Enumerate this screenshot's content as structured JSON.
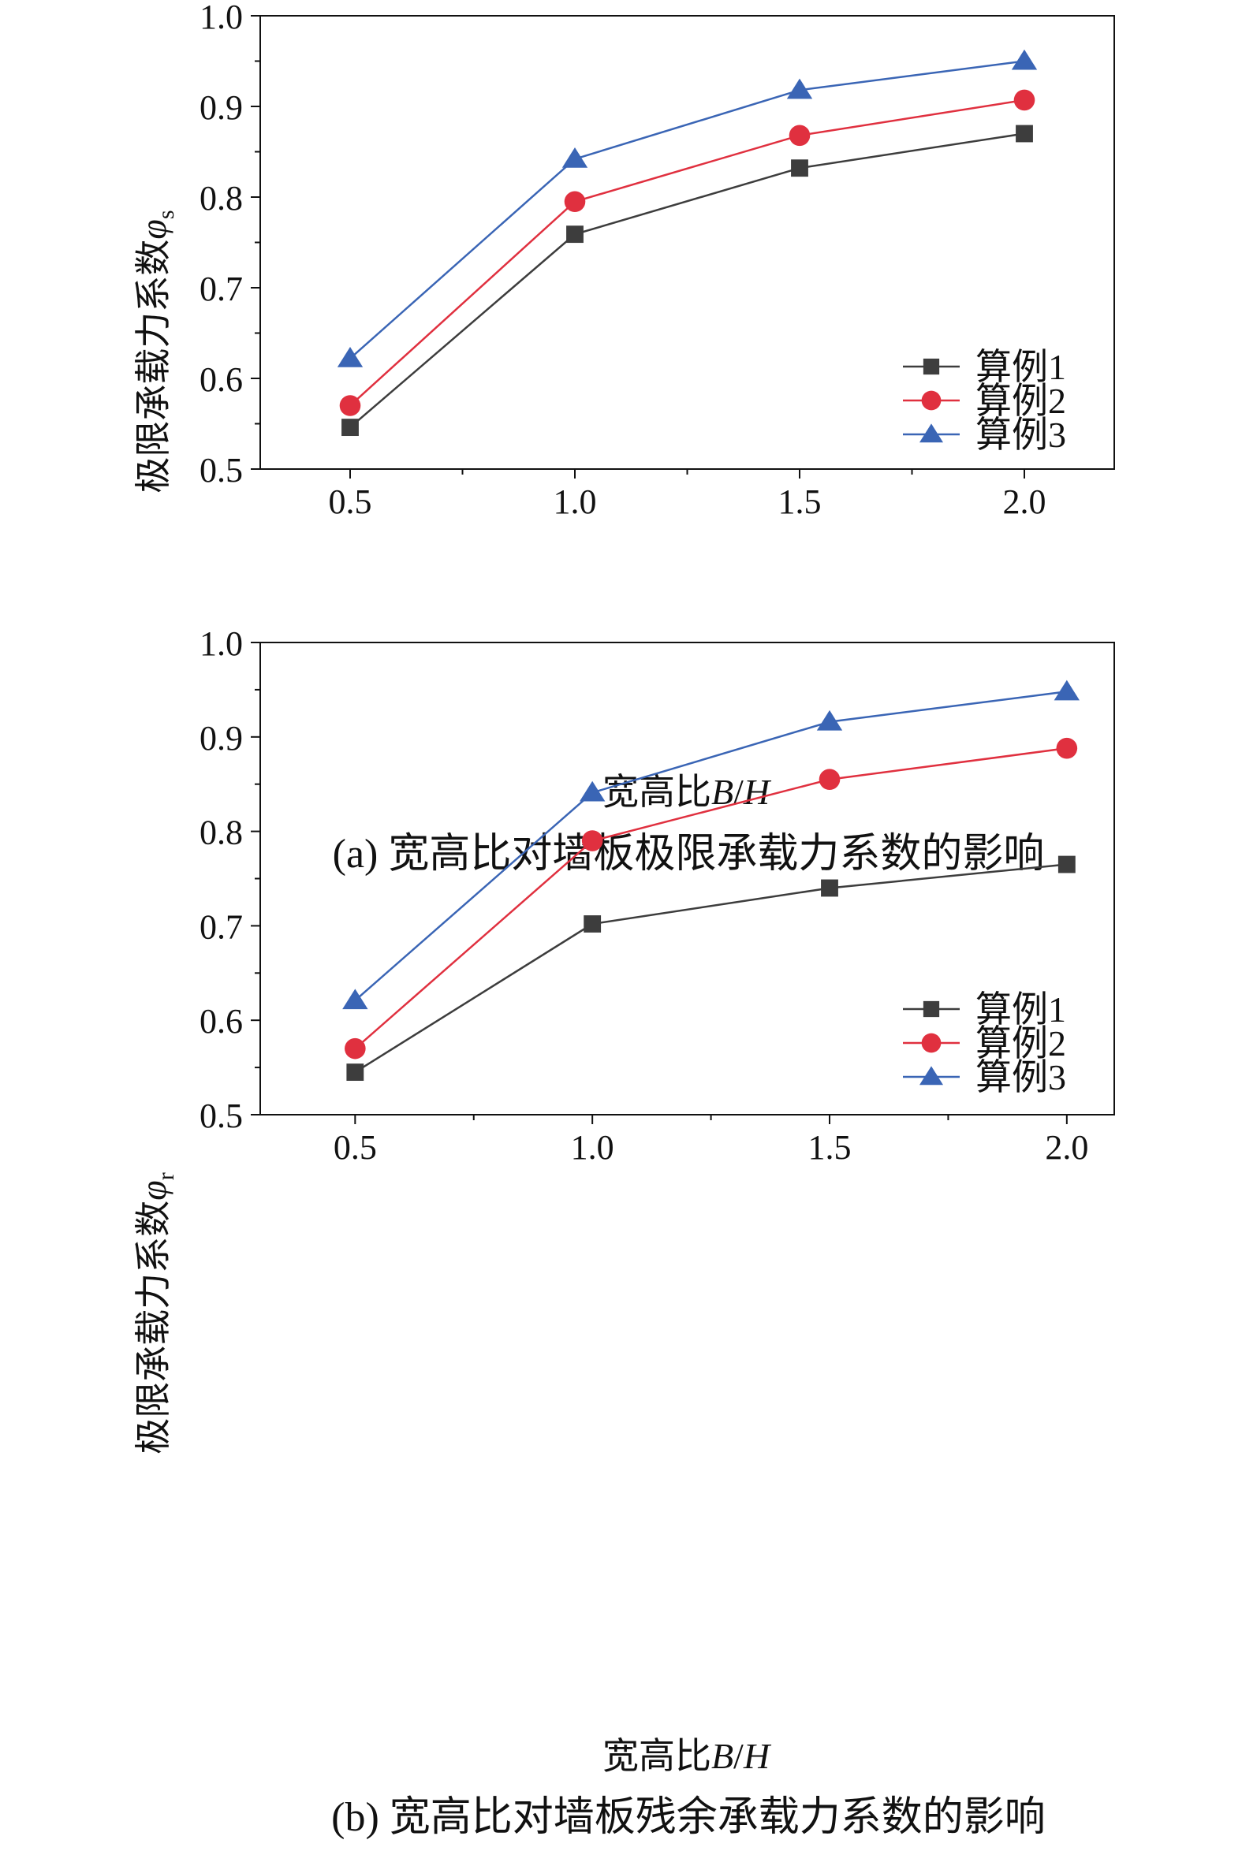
{
  "chart_data": [
    {
      "type": "line",
      "caption": "(a) 宽高比对墙板极限承载力系数的影响",
      "xlabel_prefix": "宽高比",
      "xlabel_var1": "B",
      "xlabel_slash": "/",
      "xlabel_var2": "H",
      "ylabel_prefix": "极限承载力系数",
      "ylabel_symbol": "φ",
      "ylabel_sub": "s",
      "x": [
        0.5,
        1.0,
        1.5,
        2.0
      ],
      "x_ticks": [
        "0.5",
        "1.0",
        "1.5",
        "2.0"
      ],
      "xlim": [
        0.3,
        2.2
      ],
      "ylim": [
        0.5,
        1.0
      ],
      "y_ticks": [
        "0.5",
        "0.6",
        "0.7",
        "0.8",
        "0.9",
        "1.0"
      ],
      "legend_position": "bottom-right",
      "series": [
        {
          "name": "算例1",
          "marker": "square",
          "color": "#3d3d3d",
          "values": [
            0.546,
            0.759,
            0.832,
            0.87
          ]
        },
        {
          "name": "算例2",
          "marker": "circle",
          "color": "#e0303f",
          "values": [
            0.57,
            0.795,
            0.868,
            0.907
          ]
        },
        {
          "name": "算例3",
          "marker": "triangle",
          "color": "#3a65b5",
          "values": [
            0.622,
            0.842,
            0.918,
            0.95
          ]
        }
      ]
    },
    {
      "type": "line",
      "caption": "(b) 宽高比对墙板残余承载力系数的影响",
      "xlabel_prefix": "宽高比",
      "xlabel_var1": "B",
      "xlabel_slash": "/",
      "xlabel_var2": "H",
      "ylabel_prefix": "极限承载力系数",
      "ylabel_symbol": "φ",
      "ylabel_sub": "r",
      "x": [
        0.5,
        1.0,
        1.5,
        2.0
      ],
      "x_ticks": [
        "0.5",
        "1.0",
        "1.5",
        "2.0"
      ],
      "xlim": [
        0.3,
        2.1
      ],
      "ylim": [
        0.5,
        1.0
      ],
      "y_ticks": [
        "0.5",
        "0.6",
        "0.7",
        "0.8",
        "0.9",
        "1.0"
      ],
      "legend_position": "bottom-right",
      "series": [
        {
          "name": "算例1",
          "marker": "square",
          "color": "#3d3d3d",
          "values": [
            0.545,
            0.702,
            0.74,
            0.765
          ]
        },
        {
          "name": "算例2",
          "marker": "circle",
          "color": "#e0303f",
          "values": [
            0.57,
            0.79,
            0.855,
            0.888
          ]
        },
        {
          "name": "算例3",
          "marker": "triangle",
          "color": "#3a65b5",
          "values": [
            0.621,
            0.841,
            0.916,
            0.948
          ]
        }
      ]
    }
  ]
}
